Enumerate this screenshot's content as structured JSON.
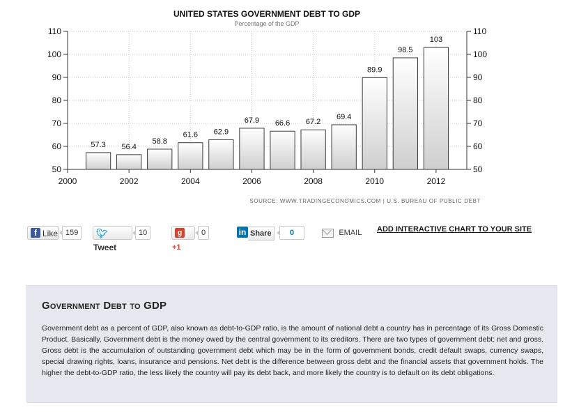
{
  "chart_data": {
    "type": "bar",
    "title": "UNITED STATES GOVERNMENT DEBT TO GDP",
    "subtitle": "Percentage of the GDP",
    "source": "SOURCE: WWW.TRADINGECONOMICS.COM | U.S. BUREAU OF PUBLIC DEBT",
    "categories": [
      "2001",
      "2002",
      "2003",
      "2004",
      "2005",
      "2006",
      "2007",
      "2008",
      "2009",
      "2010",
      "2011",
      "2012"
    ],
    "values": [
      57.3,
      56.4,
      58.8,
      61.6,
      62.9,
      67.9,
      66.6,
      67.2,
      69.4,
      89.9,
      98.5,
      103
    ],
    "value_labels": [
      "57.3",
      "56.4",
      "58.8",
      "61.6",
      "62.9",
      "67.9",
      "66.6",
      "67.2",
      "69.4",
      "89.9",
      "98.5",
      "103"
    ],
    "x_ticks": [
      "2000",
      "2002",
      "2004",
      "2006",
      "2008",
      "2010",
      "2012"
    ],
    "y_ticks": [
      "50",
      "60",
      "70",
      "80",
      "90",
      "100",
      "110"
    ],
    "ylim": [
      50,
      110
    ],
    "grid": true,
    "bar_fill_top": "#ffffff",
    "bar_fill_bottom": "#cfcfcf",
    "bar_stroke": "#3a3a3a"
  },
  "social": {
    "like_label": "Like",
    "like_count": "159",
    "tweet_label": "Tweet",
    "tweet_count": "10",
    "gplus_label": "+1",
    "gplus_count": "0",
    "share_label": "Share",
    "share_count": "0",
    "email_label": "EMAIL",
    "interactive_link": "ADD INTERACTIVE CHART TO YOUR SITE"
  },
  "description": {
    "heading": "Government Debt to GDP",
    "text": "Government debt as a percent of GDP, also known as debt-to-GDP ratio, is the amount of national debt a country has in percentage of its Gross Domestic Product. Basically, Government debt is the money owed by the central government to its creditors. There are two types of government debt: net and gross. Gross debt is the accumulation of outstanding government debt which may be in the form of government bonds, credit default swaps, currency swaps, special drawing rights, loans, insurance and pensions. Net debt is the difference between gross debt and the financial assets that government holds. The higher the debt-to-GDP ratio, the less likely the country will pay its debt back, and more likely the country is to default on its debt obligations."
  }
}
